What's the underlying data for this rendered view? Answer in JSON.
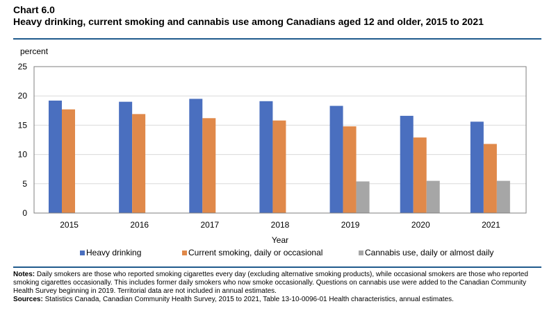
{
  "header": {
    "chart_number": "Chart 6.0",
    "title": "Heavy drinking, current smoking and cannabis use among Canadians aged 12 and older, 2015 to 2021"
  },
  "chart_data": {
    "type": "bar",
    "ylabel": "percent",
    "xlabel": "Year",
    "ylim": [
      0,
      25
    ],
    "yticks": [
      0,
      5,
      10,
      15,
      20,
      25
    ],
    "grid": true,
    "legend_position": "bottom",
    "categories": [
      "2015",
      "2016",
      "2017",
      "2018",
      "2019",
      "2020",
      "2021"
    ],
    "series": [
      {
        "name": "Heavy drinking",
        "color": "#4a6fbf",
        "values": [
          19.2,
          19.0,
          19.5,
          19.1,
          18.3,
          16.6,
          15.6
        ]
      },
      {
        "name": "Current smoking, daily or occasional",
        "color": "#e0894a",
        "values": [
          17.7,
          16.9,
          16.2,
          15.8,
          14.8,
          12.9,
          11.8
        ]
      },
      {
        "name": "Cannabis use, daily or almost daily",
        "color": "#a6a6a6",
        "values": [
          null,
          null,
          null,
          null,
          5.4,
          5.5,
          5.5
        ]
      }
    ]
  },
  "notes": {
    "notes_label": "Notes:",
    "notes_text": "Daily smokers are those who reported smoking cigarettes every day (excluding alternative smoking products), while occasional smokers are those who reported smoking cigarettes occasionally. This includes former daily smokers who now smoke occasionally. Questions on cannabis use were added to the Canadian Community Health Survey beginning in 2019. Territorial data are not included in annual estimates.",
    "sources_label": "Sources:",
    "sources_text": "Statistics Canada, Canadian Community Health Survey, 2015 to 2021, Table 13-10-0096-01 Health characteristics, annual estimates."
  }
}
